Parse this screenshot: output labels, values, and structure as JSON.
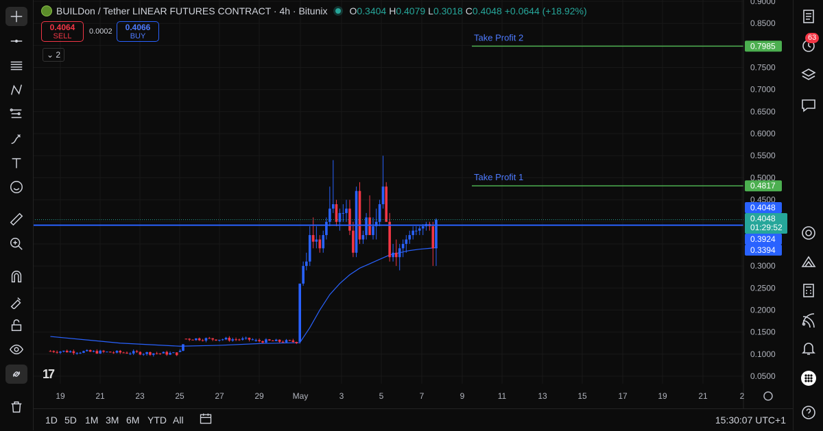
{
  "header": {
    "title": "BUILDon / Tether LINEAR FUTURES CONTRACT · 4h · Bitunix",
    "ohlc": {
      "o_label": "O",
      "o": "0.3404",
      "h_label": "H",
      "h": "0.4079",
      "l_label": "L",
      "l": "0.3018",
      "c_label": "C",
      "c": "0.4048",
      "change": "+0.0644 (+18.92%)"
    }
  },
  "trade": {
    "sell_price": "0.4064",
    "sell_label": "SELL",
    "spread": "0.0002",
    "buy_price": "0.4066",
    "buy_label": "BUY"
  },
  "indicators_count": "2",
  "bottom_bar": {
    "ranges": [
      "1D",
      "5D",
      "1M",
      "3M",
      "6M",
      "YTD",
      "All"
    ],
    "clock": "15:30:07 UTC+1"
  },
  "notifications_count": "63",
  "colors": {
    "up": "#2962ff",
    "down": "#f23645",
    "ma": "#2962ff",
    "take_profit": "#4caf50",
    "last_price": "#26a69a",
    "background": "#0c0c0c"
  },
  "left_tools": [
    "crosshair-icon",
    "trend-line-icon",
    "fib-icon",
    "pattern-icon",
    "projection-icon",
    "brush-icon",
    "text-icon",
    "emoji-icon",
    "ruler-icon",
    "zoom-in-icon",
    "magnet-icon",
    "lock-draw-icon",
    "unlock-icon",
    "eye-icon",
    "link-icon",
    "trash-icon"
  ],
  "right_tools": [
    "watchlist-icon",
    "alerts-icon",
    "layers-icon",
    "chat-icon",
    "target-icon",
    "ideas-icon",
    "calculator-icon",
    "broadcast-icon",
    "bell-icon",
    "apps-icon",
    "help-icon"
  ],
  "chart_data": {
    "type": "candlestick",
    "timeframe": "4h",
    "ylim": [
      0.03,
      0.9
    ],
    "y_ticks": [
      "0.0500",
      "0.1000",
      "0.1500",
      "0.2000",
      "0.2500",
      "0.3000",
      "0.3500",
      "0.4000",
      "0.4500",
      "0.5000",
      "0.5500",
      "0.6000",
      "0.6500",
      "0.7000",
      "0.7500",
      "0.8000",
      "0.8500",
      "0.9000"
    ],
    "x_ticks": [
      "19",
      "21",
      "23",
      "25",
      "27",
      "29",
      "May",
      "3",
      "5",
      "7",
      "9",
      "11",
      "13",
      "15",
      "17",
      "19",
      "21",
      "2"
    ],
    "price_labels": [
      {
        "value": 0.7985,
        "text": "0.7985",
        "color": "#4caf50"
      },
      {
        "value": 0.4817,
        "text": "0.4817",
        "color": "#4caf50"
      },
      {
        "value": 0.4048,
        "text": "0.4048",
        "color": "#2962ff"
      },
      {
        "value": 0.3924,
        "text": "0.3924",
        "color": "#2962ff"
      },
      {
        "value": 0.3394,
        "text": "0.3394",
        "color": "#2962ff"
      }
    ],
    "last_price": {
      "value": 0.4048,
      "text": "0.4048",
      "countdown": "01:29:52"
    },
    "take_profits": [
      {
        "label": "Take Profit 2",
        "value": 0.7985
      },
      {
        "label": "Take Profit 1",
        "value": 0.4817
      }
    ],
    "horizontal_line": 0.3924,
    "candles_segment": [
      {
        "from_day": -0.5,
        "to_day": 6.0,
        "start": 0.107,
        "end": 0.101,
        "vol": 0.004
      },
      {
        "from_day": 6.0,
        "to_day": 6.3,
        "start": 0.105,
        "end": 0.14,
        "vol": 0.004
      },
      {
        "from_day": 6.3,
        "to_day": 9.8,
        "start": 0.135,
        "end": 0.133,
        "vol": 0.004
      },
      {
        "from_day": 9.8,
        "to_day": 12.0,
        "start": 0.13,
        "end": 0.128,
        "vol": 0.004
      }
    ],
    "candles_detail": [
      [
        12.0,
        0.128,
        0.13,
        0.124,
        0.26
      ],
      [
        12.17,
        0.26,
        0.31,
        0.255,
        0.3
      ],
      [
        12.33,
        0.3,
        0.33,
        0.29,
        0.31
      ],
      [
        12.5,
        0.31,
        0.39,
        0.3,
        0.37
      ],
      [
        12.67,
        0.37,
        0.41,
        0.34,
        0.355
      ],
      [
        12.83,
        0.355,
        0.39,
        0.34,
        0.36
      ],
      [
        13.0,
        0.36,
        0.37,
        0.33,
        0.34
      ],
      [
        13.17,
        0.34,
        0.38,
        0.33,
        0.37
      ],
      [
        13.33,
        0.37,
        0.41,
        0.36,
        0.4
      ],
      [
        13.5,
        0.4,
        0.48,
        0.39,
        0.43
      ],
      [
        13.67,
        0.43,
        0.54,
        0.42,
        0.44
      ],
      [
        13.83,
        0.44,
        0.45,
        0.39,
        0.4
      ],
      [
        14.0,
        0.4,
        0.43,
        0.38,
        0.42
      ],
      [
        14.17,
        0.42,
        0.44,
        0.4,
        0.42
      ],
      [
        14.33,
        0.42,
        0.45,
        0.4,
        0.43
      ],
      [
        14.5,
        0.43,
        0.45,
        0.37,
        0.38
      ],
      [
        14.67,
        0.38,
        0.4,
        0.32,
        0.33
      ],
      [
        14.83,
        0.33,
        0.48,
        0.32,
        0.47
      ],
      [
        15.0,
        0.47,
        0.49,
        0.35,
        0.36
      ],
      [
        15.17,
        0.36,
        0.38,
        0.35,
        0.37
      ],
      [
        15.33,
        0.37,
        0.42,
        0.36,
        0.41
      ],
      [
        15.5,
        0.41,
        0.46,
        0.38,
        0.37
      ],
      [
        15.67,
        0.37,
        0.41,
        0.36,
        0.39
      ],
      [
        15.83,
        0.39,
        0.43,
        0.36,
        0.4
      ],
      [
        16.0,
        0.4,
        0.45,
        0.39,
        0.44
      ],
      [
        16.17,
        0.44,
        0.55,
        0.43,
        0.48
      ],
      [
        16.33,
        0.48,
        0.49,
        0.4,
        0.4
      ],
      [
        16.5,
        0.4,
        0.42,
        0.31,
        0.32
      ],
      [
        16.67,
        0.32,
        0.35,
        0.31,
        0.33
      ],
      [
        16.83,
        0.33,
        0.36,
        0.3,
        0.32
      ],
      [
        17.0,
        0.32,
        0.35,
        0.29,
        0.34
      ],
      [
        17.17,
        0.34,
        0.36,
        0.32,
        0.35
      ],
      [
        17.33,
        0.35,
        0.37,
        0.33,
        0.36
      ],
      [
        17.5,
        0.36,
        0.38,
        0.35,
        0.37
      ],
      [
        17.67,
        0.37,
        0.39,
        0.36,
        0.38
      ],
      [
        17.83,
        0.38,
        0.39,
        0.37,
        0.38
      ],
      [
        18.0,
        0.38,
        0.39,
        0.37,
        0.385
      ],
      [
        18.17,
        0.385,
        0.395,
        0.37,
        0.39
      ],
      [
        18.33,
        0.39,
        0.4,
        0.38,
        0.395
      ],
      [
        18.5,
        0.395,
        0.4,
        0.38,
        0.39
      ],
      [
        18.67,
        0.39,
        0.4,
        0.3,
        0.34
      ],
      [
        18.83,
        0.34,
        0.408,
        0.3,
        0.405
      ]
    ],
    "ma": [
      [
        -0.5,
        0.14
      ],
      [
        3,
        0.125
      ],
      [
        6,
        0.118
      ],
      [
        8,
        0.12
      ],
      [
        10,
        0.124
      ],
      [
        12,
        0.126
      ],
      [
        12.5,
        0.16
      ],
      [
        13,
        0.2
      ],
      [
        13.5,
        0.235
      ],
      [
        14,
        0.26
      ],
      [
        14.5,
        0.28
      ],
      [
        15,
        0.295
      ],
      [
        15.5,
        0.305
      ],
      [
        16,
        0.315
      ],
      [
        16.5,
        0.325
      ],
      [
        17,
        0.33
      ],
      [
        17.5,
        0.335
      ],
      [
        18,
        0.338
      ],
      [
        18.5,
        0.34
      ],
      [
        18.9,
        0.342
      ]
    ]
  }
}
